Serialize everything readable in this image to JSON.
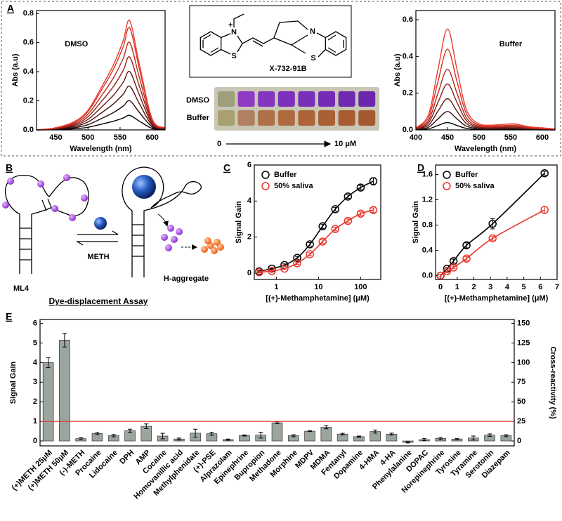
{
  "figure": {
    "panel_labels": [
      "A",
      "B",
      "C",
      "D",
      "E"
    ],
    "structure": {
      "label": "X-732-91B",
      "atoms": [
        "+",
        "N",
        "S",
        "N",
        "S"
      ]
    },
    "plate": {
      "rows": [
        "DMSO",
        "Buffer"
      ],
      "range_start": "0",
      "range_end": "10 μM"
    },
    "diagram_b": {
      "aptamer": "ML4",
      "target": "METH",
      "product": "H-aggregate",
      "caption": "Dye-displacement Assay"
    }
  },
  "chart_data": [
    {
      "type": "line",
      "annotation": "DMSO",
      "xlabel": "Wavelength (nm)",
      "ylabel": "Abs (a.u)",
      "x": [
        420,
        450,
        480,
        500,
        520,
        540,
        555,
        565,
        580,
        600,
        620
      ],
      "xlim": [
        420,
        620
      ],
      "xticks": [
        450,
        500,
        550,
        600
      ],
      "ylim": [
        0,
        0.82
      ],
      "yticks": [
        {
          "value": 0,
          "label": "0.0"
        },
        0.2,
        0.4,
        0.6,
        0.8
      ],
      "series": [
        {
          "color": "#000000",
          "values": [
            0,
            0.002,
            0.008,
            0.018,
            0.038,
            0.06,
            0.082,
            0.1,
            0.06,
            0.01,
            0.002
          ]
        },
        {
          "color": "#2a0a08",
          "values": [
            0,
            0.004,
            0.016,
            0.036,
            0.076,
            0.12,
            0.164,
            0.2,
            0.12,
            0.02,
            0.004
          ]
        },
        {
          "color": "#4a120e",
          "values": [
            0,
            0.006,
            0.024,
            0.054,
            0.114,
            0.18,
            0.246,
            0.3,
            0.18,
            0.03,
            0.006
          ]
        },
        {
          "color": "#6e1a14",
          "values": [
            0,
            0.008,
            0.032,
            0.072,
            0.152,
            0.24,
            0.328,
            0.4,
            0.24,
            0.04,
            0.008
          ]
        },
        {
          "color": "#93221a",
          "values": [
            0,
            0.01,
            0.04,
            0.09,
            0.19,
            0.3,
            0.41,
            0.5,
            0.3,
            0.05,
            0.01
          ]
        },
        {
          "color": "#b82a20",
          "values": [
            0,
            0.012,
            0.048,
            0.108,
            0.228,
            0.36,
            0.492,
            0.6,
            0.36,
            0.06,
            0.012
          ]
        },
        {
          "color": "#d93226",
          "values": [
            0,
            0.014,
            0.056,
            0.126,
            0.266,
            0.42,
            0.574,
            0.7,
            0.42,
            0.07,
            0.014
          ]
        },
        {
          "color": "#f03a2c",
          "values": [
            0,
            0.015,
            0.06,
            0.135,
            0.285,
            0.45,
            0.615,
            0.75,
            0.45,
            0.075,
            0.015
          ]
        }
      ]
    },
    {
      "type": "line",
      "annotation": "Buffer",
      "xlabel": "Wavelength (nm)",
      "ylabel": "Abs (a.u)",
      "x": [
        400,
        420,
        435,
        450,
        465,
        480,
        500,
        530,
        555,
        580,
        620
      ],
      "xlim": [
        400,
        620
      ],
      "xticks": [
        400,
        450,
        500,
        550,
        600
      ],
      "ylim": [
        0,
        0.65
      ],
      "yticks": [
        {
          "value": 0,
          "label": "0.0"
        },
        0.2,
        0.4,
        0.6
      ],
      "series": [
        {
          "color": "#000000",
          "values": [
            0.001,
            0.006,
            0.024,
            0.04,
            0.024,
            0.008,
            0.002,
            0.002,
            0.002,
            0.001,
            0
          ]
        },
        {
          "color": "#33100c",
          "values": [
            0.002,
            0.015,
            0.06,
            0.1,
            0.06,
            0.02,
            0.006,
            0.005,
            0.006,
            0.003,
            0.001
          ]
        },
        {
          "color": "#5c1812",
          "values": [
            0.003,
            0.026,
            0.102,
            0.17,
            0.102,
            0.034,
            0.01,
            0.009,
            0.01,
            0.005,
            0.002
          ]
        },
        {
          "color": "#862018",
          "values": [
            0.005,
            0.038,
            0.15,
            0.25,
            0.15,
            0.05,
            0.015,
            0.013,
            0.015,
            0.008,
            0.003
          ]
        },
        {
          "color": "#ad281e",
          "values": [
            0.007,
            0.05,
            0.2,
            0.33,
            0.2,
            0.066,
            0.02,
            0.017,
            0.02,
            0.01,
            0.003
          ]
        },
        {
          "color": "#d33024",
          "values": [
            0.009,
            0.066,
            0.264,
            0.44,
            0.264,
            0.088,
            0.026,
            0.022,
            0.026,
            0.013,
            0.004
          ]
        },
        {
          "color": "#f03a2c",
          "values": [
            0.011,
            0.083,
            0.33,
            0.55,
            0.33,
            0.11,
            0.033,
            0.028,
            0.033,
            0.017,
            0.006
          ]
        }
      ]
    },
    {
      "type": "scatter",
      "xscale": "log",
      "xlabel": "[(+)-Methamphetamine] (μM)",
      "ylabel": "Signal Gain",
      "legend": "upper left",
      "x": [
        0.39,
        0.78,
        1.56,
        3.125,
        6.25,
        12.5,
        25,
        50,
        100,
        200
      ],
      "xlim": [
        0.3,
        300
      ],
      "xticks": [
        1,
        10,
        100
      ],
      "ylim": [
        -0.35,
        6
      ],
      "yticks": [
        0,
        2,
        4,
        6
      ],
      "series": [
        {
          "name": "Buffer",
          "color": "#000000",
          "values": [
            0.1,
            0.25,
            0.45,
            0.85,
            1.6,
            2.6,
            3.55,
            4.25,
            4.75,
            5.1
          ],
          "errors": [
            0.05,
            0.05,
            0.06,
            0.08,
            0.1,
            0.12,
            0.1,
            0.1,
            0.12,
            0.2
          ]
        },
        {
          "name": "50% saliva",
          "color": "#e8342a",
          "values": [
            0.05,
            0.12,
            0.25,
            0.55,
            1.05,
            1.75,
            2.45,
            2.9,
            3.3,
            3.5
          ],
          "errors": [
            0.05,
            0.05,
            0.05,
            0.06,
            0.08,
            0.1,
            0.1,
            0.1,
            0.1,
            0.12
          ]
        }
      ]
    },
    {
      "type": "scatter",
      "xlabel": "[(+)-Methamphetamine] (μM)",
      "ylabel": "Signal Gain",
      "legend": "upper left",
      "x": [
        0,
        0.39,
        0.78,
        1.56,
        3.125,
        6.25
      ],
      "xlim": [
        -0.3,
        7
      ],
      "xticks": [
        0,
        1,
        2,
        3,
        4,
        5,
        6,
        7
      ],
      "ylim": [
        -0.06,
        1.75
      ],
      "yticks": [
        {
          "value": 0,
          "label": "0.0"
        },
        0.4,
        0.8,
        1.2,
        1.6
      ],
      "series": [
        {
          "name": "Buffer",
          "color": "#000000",
          "values": [
            0,
            0.11,
            0.23,
            0.48,
            0.82,
            1.62
          ],
          "errors": [
            0.02,
            0.02,
            0.03,
            0.04,
            0.08,
            0.03
          ]
        },
        {
          "name": "50% saliva",
          "color": "#e8342a",
          "values": [
            0,
            0.07,
            0.13,
            0.27,
            0.59,
            1.04
          ],
          "errors": [
            0.02,
            0.02,
            0.02,
            0.03,
            0.03,
            0.05
          ]
        }
      ]
    },
    {
      "type": "bar",
      "ylabel": "Signal Gain",
      "y2label": "Cross-reactivity (%)",
      "color": "#9aa59e",
      "categories": [
        "(+)METH 25μM",
        "(+)METH 50μM",
        "(-)-METH",
        "Procaine",
        "Lidocaine",
        "DPH",
        "AMP",
        "Cocaine",
        "Homovanillic acid",
        "Methylphenidate",
        "(+)-PSE",
        "Alprazolam",
        "Epinephrine",
        "Bupropion",
        "Methadone",
        "Morphine",
        "MDPV",
        "MDMA",
        "Fentanyl",
        "Dopamine",
        "4-HMA",
        "4-HA",
        "Phenylalanine",
        "DOPAC",
        "Norepinephrine",
        "Tyrosine",
        "Tyramine",
        "Serotonin",
        "Diazepam"
      ],
      "values": [
        4.0,
        5.15,
        0.12,
        0.38,
        0.27,
        0.52,
        0.75,
        0.25,
        0.1,
        0.4,
        0.37,
        0.07,
        0.28,
        0.3,
        0.93,
        0.27,
        0.5,
        0.7,
        0.35,
        0.22,
        0.48,
        0.35,
        -0.07,
        0.07,
        0.13,
        0.1,
        0.15,
        0.3,
        0.27
      ],
      "errors": [
        0.25,
        0.35,
        0.04,
        0.05,
        0.06,
        0.08,
        0.12,
        0.14,
        0.05,
        0.2,
        0.08,
        0.03,
        0.03,
        0.15,
        0.05,
        0.05,
        0.02,
        0.08,
        0.04,
        0.03,
        0.08,
        0.05,
        0.03,
        0.05,
        0.05,
        0.02,
        0.1,
        0.06,
        0.05
      ],
      "ylim": [
        -0.25,
        6.2
      ],
      "yticks": [
        0,
        1,
        2,
        3,
        4,
        5,
        6
      ],
      "y2lim": [
        -6.25,
        155
      ],
      "y2ticks": [
        0,
        25,
        50,
        75,
        100,
        125,
        150
      ],
      "reference_line": {
        "value": 1,
        "color": "#e8342a"
      }
    }
  ]
}
